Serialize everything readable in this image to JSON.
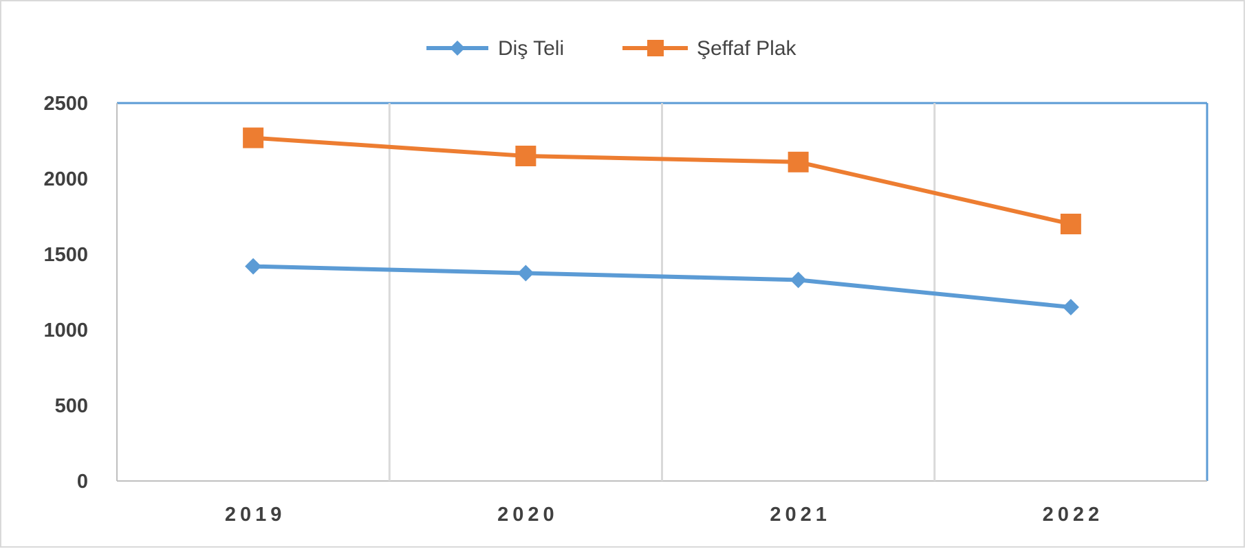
{
  "chart_data": {
    "type": "line",
    "title": "",
    "xlabel": "",
    "ylabel": "",
    "categories": [
      "2019",
      "2020",
      "2021",
      "2022"
    ],
    "ylim": [
      0,
      2500
    ],
    "yticks": [
      0,
      500,
      1000,
      1500,
      2000,
      2500
    ],
    "grid": "vertical",
    "legend_position": "top",
    "series": [
      {
        "name": "Diş Teli",
        "values": [
          1420,
          1375,
          1330,
          1150
        ],
        "color": "#5B9BD5",
        "marker": "diamond"
      },
      {
        "name": "Şeffaf Plak",
        "values": [
          2270,
          2150,
          2110,
          1700
        ],
        "color": "#ED7D31",
        "marker": "square"
      }
    ]
  }
}
